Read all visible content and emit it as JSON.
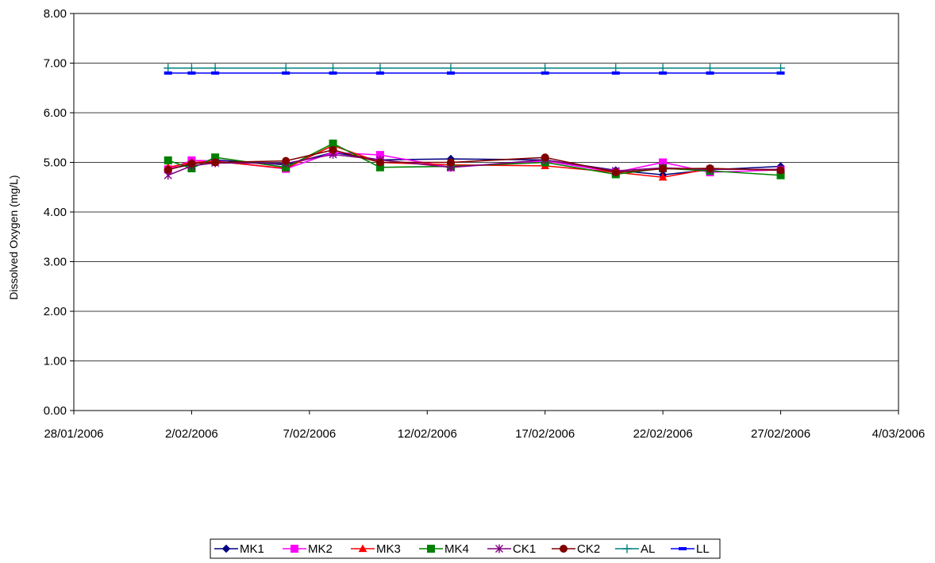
{
  "chart_data": {
    "type": "line",
    "title": "",
    "xlabel": "",
    "ylabel": "Dissolved Oxygen (mg/L)",
    "xlim": [
      "2006-01-28",
      "2006-03-04"
    ],
    "ylim": [
      0,
      8
    ],
    "y_ticks": [
      "0.00",
      "1.00",
      "2.00",
      "3.00",
      "4.00",
      "5.00",
      "6.00",
      "7.00",
      "8.00"
    ],
    "x_ticks": [
      {
        "date": "2006-01-28",
        "label": "28/01/2006"
      },
      {
        "date": "2006-02-02",
        "label": "2/02/2006"
      },
      {
        "date": "2006-02-07",
        "label": "7/02/2006"
      },
      {
        "date": "2006-02-12",
        "label": "12/02/2006"
      },
      {
        "date": "2006-02-17",
        "label": "17/02/2006"
      },
      {
        "date": "2006-02-22",
        "label": "22/02/2006"
      },
      {
        "date": "2006-02-27",
        "label": "27/02/2006"
      },
      {
        "date": "2006-03-04",
        "label": "4/03/2006"
      }
    ],
    "grid": "horizontal",
    "legend_position": "bottom",
    "x": [
      "2006-02-01",
      "2006-02-02",
      "2006-02-03",
      "2006-02-06",
      "2006-02-08",
      "2006-02-10",
      "2006-02-13",
      "2006-02-17",
      "2006-02-20",
      "2006-02-22",
      "2006-02-24",
      "2006-02-27"
    ],
    "series": [
      {
        "name": "MK1",
        "color": "#000080",
        "marker": "diamond",
        "values": [
          4.86,
          4.96,
          5.05,
          4.95,
          5.2,
          5.05,
          5.07,
          5.05,
          4.84,
          4.75,
          4.85,
          4.92
        ]
      },
      {
        "name": "MK2",
        "color": "#FF00FF",
        "marker": "square",
        "values": [
          4.86,
          5.04,
          5.03,
          4.87,
          5.2,
          5.15,
          4.9,
          5.03,
          4.8,
          5.0,
          4.8,
          4.85
        ]
      },
      {
        "name": "MK3",
        "color": "#FF0000",
        "marker": "triangle",
        "values": [
          4.9,
          5.0,
          5.02,
          4.88,
          5.34,
          5.0,
          4.95,
          4.93,
          4.8,
          4.7,
          4.87,
          4.85
        ]
      },
      {
        "name": "MK4",
        "color": "#008000",
        "marker": "square",
        "values": [
          5.04,
          4.88,
          5.1,
          4.9,
          5.38,
          4.9,
          4.92,
          5.0,
          4.76,
          4.88,
          4.83,
          4.74
        ]
      },
      {
        "name": "CK1",
        "color": "#800080",
        "marker": "star",
        "values": [
          4.74,
          4.93,
          4.99,
          4.98,
          5.16,
          5.05,
          4.9,
          5.05,
          4.83,
          4.89,
          4.86,
          4.86
        ]
      },
      {
        "name": "CK2",
        "color": "#800000",
        "marker": "circle",
        "values": [
          4.85,
          4.98,
          5.0,
          5.03,
          5.25,
          5.0,
          5.0,
          5.1,
          4.8,
          4.87,
          4.88,
          4.84
        ]
      },
      {
        "name": "AL",
        "color": "#008080",
        "marker": "plus",
        "values": [
          6.9,
          6.9,
          6.9,
          6.9,
          6.9,
          6.9,
          6.9,
          6.9,
          6.9,
          6.9,
          6.9,
          6.9
        ]
      },
      {
        "name": "LL",
        "color": "#0000FF",
        "marker": "dash",
        "values": [
          6.8,
          6.8,
          6.8,
          6.8,
          6.8,
          6.8,
          6.8,
          6.8,
          6.8,
          6.8,
          6.8,
          6.8
        ]
      }
    ]
  }
}
